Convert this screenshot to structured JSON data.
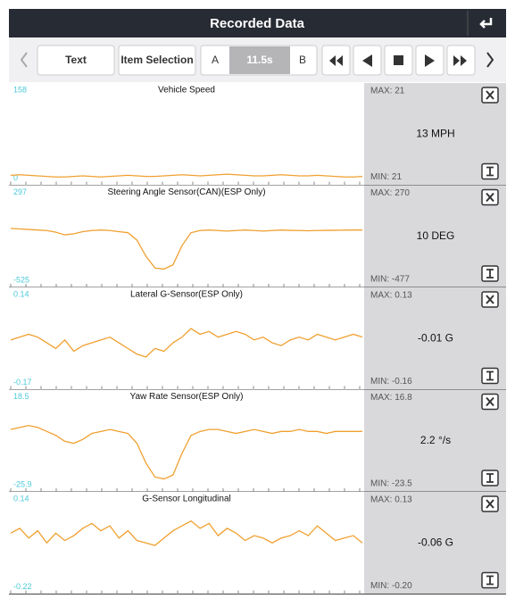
{
  "header": {
    "title": "Recorded Data"
  },
  "toolbar": {
    "text_button": "Text",
    "item_button": "Item Selection",
    "a_label": "A",
    "time": "11.5s",
    "b_label": "B"
  },
  "panels": [
    {
      "title": "Vehicle Speed",
      "ylim": [
        0,
        158
      ],
      "max_label": "MAX: 21",
      "min_label": "MIN: 21",
      "current": "13 MPH",
      "color": "#f0a030",
      "values": [
        5,
        6,
        5,
        4,
        3,
        2,
        2,
        3,
        4,
        3,
        2,
        3,
        4,
        5,
        4,
        3,
        3,
        4,
        5,
        6,
        5,
        4,
        5,
        6,
        7,
        6,
        5,
        4,
        4,
        5,
        6,
        5,
        4,
        4,
        5,
        4,
        3,
        2,
        2,
        3
      ]
    },
    {
      "title": "Steering Angle Sensor(CAN)(ESP Only)",
      "ylim": [
        -525,
        297
      ],
      "max_label": "MAX: 270",
      "min_label": "MIN: -477",
      "current": "10 DEG",
      "color": "#f0a030",
      "values": [
        -40,
        -45,
        -50,
        -55,
        -60,
        -75,
        -100,
        -90,
        -70,
        -60,
        -55,
        -60,
        -70,
        -80,
        -150,
        -300,
        -410,
        -420,
        -380,
        -200,
        -80,
        -60,
        -55,
        -60,
        -65,
        -60,
        -55,
        -60,
        -65,
        -60,
        -55,
        -58,
        -60,
        -62,
        -60,
        -58,
        -57,
        -56,
        -55,
        -55
      ]
    },
    {
      "title": "Lateral G-Sensor(ESP Only)",
      "ylim": [
        -0.17,
        0.14
      ],
      "max_label": "MAX: 0.13",
      "min_label": "MIN: -0.16",
      "current": "-0.01 G",
      "color": "#f0a030",
      "values": [
        -0.02,
        -0.01,
        0.0,
        -0.01,
        -0.03,
        -0.05,
        -0.02,
        -0.06,
        -0.04,
        -0.03,
        -0.02,
        -0.01,
        -0.03,
        -0.05,
        -0.07,
        -0.08,
        -0.05,
        -0.06,
        -0.03,
        -0.01,
        0.02,
        0.0,
        0.01,
        -0.01,
        0.0,
        0.01,
        0.0,
        -0.02,
        -0.01,
        -0.03,
        -0.04,
        -0.02,
        -0.01,
        -0.02,
        0.0,
        -0.01,
        -0.02,
        -0.01,
        0.0,
        -0.01
      ]
    },
    {
      "title": "Yaw Rate Sensor(ESP Only)",
      "ylim": [
        -25.9,
        18.5
      ],
      "max_label": "MAX: 16.8",
      "min_label": "MIN: -23.5",
      "current": "2.2 °/s",
      "color": "#f0a030",
      "values": [
        2,
        3,
        4,
        3,
        1,
        -1,
        -4,
        -5,
        -3,
        0,
        1,
        2,
        1,
        0,
        -5,
        -15,
        -22,
        -23,
        -21,
        -10,
        -1,
        1,
        2,
        2,
        1,
        0,
        1,
        2,
        1,
        0,
        1,
        1,
        2,
        1,
        1,
        0,
        1,
        1,
        1,
        1
      ]
    },
    {
      "title": "G-Sensor Longitudinal",
      "ylim": [
        -0.22,
        0.14
      ],
      "max_label": "MAX: 0.13",
      "min_label": "MIN: -0.20",
      "current": "-0.06 G",
      "color": "#f0a030",
      "values": [
        0.0,
        0.02,
        -0.02,
        0.01,
        -0.04,
        0.0,
        -0.03,
        -0.01,
        0.02,
        0.04,
        0.01,
        0.03,
        -0.02,
        0.01,
        -0.03,
        -0.04,
        -0.05,
        -0.02,
        0.01,
        0.03,
        0.05,
        0.02,
        0.04,
        -0.01,
        0.02,
        0.0,
        -0.03,
        -0.01,
        -0.02,
        -0.04,
        -0.02,
        -0.01,
        0.01,
        -0.01,
        0.03,
        0.0,
        -0.03,
        -0.02,
        -0.01,
        -0.04
      ]
    }
  ]
}
